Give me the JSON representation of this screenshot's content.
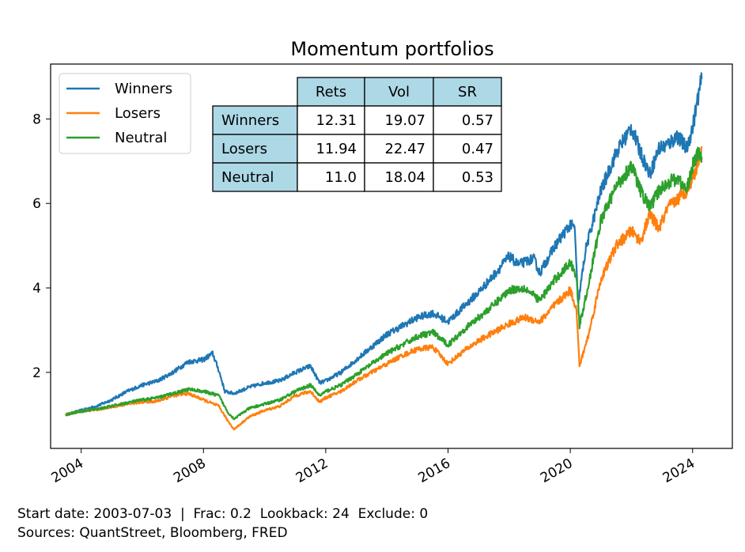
{
  "chart_data": {
    "type": "line",
    "title": "Momentum portfolios",
    "xlabel": "",
    "ylabel": "",
    "xlim": [
      2003.0,
      2025.3
    ],
    "ylim": [
      0.2,
      9.3
    ],
    "x_ticks": [
      2004,
      2008,
      2012,
      2016,
      2020,
      2024
    ],
    "x_tick_labels": [
      "2004",
      "2008",
      "2012",
      "2016",
      "2020",
      "2024"
    ],
    "y_ticks": [
      2,
      4,
      6,
      8
    ],
    "y_tick_labels": [
      "2",
      "4",
      "6",
      "8"
    ],
    "grid": false,
    "legend_position": "upper-left",
    "series": [
      {
        "name": "Winners",
        "color": "#1f77b4",
        "points": [
          [
            2003.5,
            1.0
          ],
          [
            2004.0,
            1.1
          ],
          [
            2004.5,
            1.2
          ],
          [
            2005.0,
            1.35
          ],
          [
            2005.5,
            1.55
          ],
          [
            2006.0,
            1.7
          ],
          [
            2006.5,
            1.8
          ],
          [
            2007.0,
            2.0
          ],
          [
            2007.5,
            2.25
          ],
          [
            2008.0,
            2.3
          ],
          [
            2008.3,
            2.45
          ],
          [
            2008.5,
            2.05
          ],
          [
            2008.7,
            1.55
          ],
          [
            2009.0,
            1.5
          ],
          [
            2009.5,
            1.65
          ],
          [
            2010.0,
            1.75
          ],
          [
            2010.5,
            1.8
          ],
          [
            2011.0,
            2.0
          ],
          [
            2011.5,
            2.15
          ],
          [
            2011.8,
            1.75
          ],
          [
            2012.0,
            1.8
          ],
          [
            2012.5,
            2.0
          ],
          [
            2013.0,
            2.3
          ],
          [
            2013.5,
            2.6
          ],
          [
            2014.0,
            2.9
          ],
          [
            2014.5,
            3.1
          ],
          [
            2015.0,
            3.3
          ],
          [
            2015.5,
            3.4
          ],
          [
            2016.0,
            3.2
          ],
          [
            2016.5,
            3.55
          ],
          [
            2017.0,
            3.9
          ],
          [
            2017.5,
            4.3
          ],
          [
            2018.0,
            4.75
          ],
          [
            2018.3,
            4.55
          ],
          [
            2018.8,
            4.7
          ],
          [
            2019.0,
            4.35
          ],
          [
            2019.5,
            5.0
          ],
          [
            2020.0,
            5.5
          ],
          [
            2020.15,
            5.4
          ],
          [
            2020.25,
            3.6
          ],
          [
            2020.5,
            4.9
          ],
          [
            2021.0,
            6.3
          ],
          [
            2021.5,
            7.2
          ],
          [
            2022.0,
            7.8
          ],
          [
            2022.3,
            7.2
          ],
          [
            2022.6,
            6.7
          ],
          [
            2022.9,
            7.3
          ],
          [
            2023.2,
            7.4
          ],
          [
            2023.5,
            7.6
          ],
          [
            2023.8,
            7.3
          ],
          [
            2024.0,
            7.8
          ],
          [
            2024.2,
            8.6
          ],
          [
            2024.3,
            8.95
          ]
        ]
      },
      {
        "name": "Losers",
        "color": "#ff7f0e",
        "points": [
          [
            2003.5,
            1.0
          ],
          [
            2004.0,
            1.08
          ],
          [
            2004.5,
            1.12
          ],
          [
            2005.0,
            1.18
          ],
          [
            2005.5,
            1.25
          ],
          [
            2006.0,
            1.3
          ],
          [
            2006.5,
            1.32
          ],
          [
            2007.0,
            1.45
          ],
          [
            2007.5,
            1.5
          ],
          [
            2008.0,
            1.35
          ],
          [
            2008.5,
            1.2
          ],
          [
            2008.8,
            0.85
          ],
          [
            2009.0,
            0.65
          ],
          [
            2009.5,
            0.95
          ],
          [
            2010.0,
            1.1
          ],
          [
            2010.5,
            1.2
          ],
          [
            2011.0,
            1.45
          ],
          [
            2011.5,
            1.55
          ],
          [
            2011.8,
            1.3
          ],
          [
            2012.0,
            1.4
          ],
          [
            2012.5,
            1.55
          ],
          [
            2013.0,
            1.8
          ],
          [
            2013.5,
            2.0
          ],
          [
            2014.0,
            2.2
          ],
          [
            2014.5,
            2.4
          ],
          [
            2015.0,
            2.55
          ],
          [
            2015.5,
            2.6
          ],
          [
            2016.0,
            2.2
          ],
          [
            2016.5,
            2.5
          ],
          [
            2017.0,
            2.75
          ],
          [
            2017.5,
            2.95
          ],
          [
            2018.0,
            3.15
          ],
          [
            2018.5,
            3.3
          ],
          [
            2019.0,
            3.2
          ],
          [
            2019.5,
            3.6
          ],
          [
            2020.0,
            3.95
          ],
          [
            2020.2,
            3.5
          ],
          [
            2020.3,
            2.15
          ],
          [
            2020.6,
            2.9
          ],
          [
            2021.0,
            4.2
          ],
          [
            2021.5,
            5.0
          ],
          [
            2022.0,
            5.35
          ],
          [
            2022.3,
            5.1
          ],
          [
            2022.6,
            5.75
          ],
          [
            2022.9,
            5.4
          ],
          [
            2023.2,
            5.9
          ],
          [
            2023.5,
            6.1
          ],
          [
            2023.8,
            6.3
          ],
          [
            2024.0,
            6.6
          ],
          [
            2024.2,
            7.0
          ],
          [
            2024.3,
            7.35
          ]
        ]
      },
      {
        "name": "Neutral",
        "color": "#2ca02c",
        "points": [
          [
            2003.5,
            1.0
          ],
          [
            2004.0,
            1.08
          ],
          [
            2004.5,
            1.13
          ],
          [
            2005.0,
            1.2
          ],
          [
            2005.5,
            1.28
          ],
          [
            2006.0,
            1.35
          ],
          [
            2006.5,
            1.4
          ],
          [
            2007.0,
            1.5
          ],
          [
            2007.5,
            1.6
          ],
          [
            2008.0,
            1.55
          ],
          [
            2008.5,
            1.45
          ],
          [
            2008.8,
            1.05
          ],
          [
            2009.0,
            0.9
          ],
          [
            2009.5,
            1.15
          ],
          [
            2010.0,
            1.25
          ],
          [
            2010.5,
            1.35
          ],
          [
            2011.0,
            1.55
          ],
          [
            2011.5,
            1.7
          ],
          [
            2011.8,
            1.45
          ],
          [
            2012.0,
            1.55
          ],
          [
            2012.5,
            1.7
          ],
          [
            2013.0,
            1.95
          ],
          [
            2013.5,
            2.2
          ],
          [
            2014.0,
            2.45
          ],
          [
            2014.5,
            2.65
          ],
          [
            2015.0,
            2.85
          ],
          [
            2015.5,
            2.95
          ],
          [
            2016.0,
            2.65
          ],
          [
            2016.5,
            3.0
          ],
          [
            2017.0,
            3.3
          ],
          [
            2017.5,
            3.6
          ],
          [
            2018.0,
            3.95
          ],
          [
            2018.5,
            4.0
          ],
          [
            2019.0,
            3.7
          ],
          [
            2019.5,
            4.2
          ],
          [
            2020.0,
            4.6
          ],
          [
            2020.2,
            4.3
          ],
          [
            2020.3,
            3.1
          ],
          [
            2020.6,
            4.1
          ],
          [
            2021.0,
            5.6
          ],
          [
            2021.5,
            6.4
          ],
          [
            2022.0,
            6.9
          ],
          [
            2022.3,
            6.3
          ],
          [
            2022.6,
            5.9
          ],
          [
            2022.9,
            6.3
          ],
          [
            2023.2,
            6.5
          ],
          [
            2023.5,
            6.6
          ],
          [
            2023.8,
            6.3
          ],
          [
            2024.0,
            6.9
          ],
          [
            2024.2,
            7.2
          ],
          [
            2024.3,
            7.1
          ]
        ]
      }
    ],
    "table": {
      "columns": [
        "Rets",
        "Vol",
        "SR"
      ],
      "rows": [
        {
          "label": "Winners",
          "values": [
            "12.31",
            "19.07",
            "0.57"
          ]
        },
        {
          "label": "Losers",
          "values": [
            "11.94",
            "22.47",
            "0.47"
          ]
        },
        {
          "label": "Neutral",
          "values": [
            "11.0",
            "18.04",
            "0.53"
          ]
        }
      ],
      "header_color": "#add8e6"
    }
  },
  "footer": {
    "line1": "Start date: 2003-07-03  |  Frac: 0.2  Lookback: 24  Exclude: 0",
    "line2": "Sources: QuantStreet, Bloomberg, FRED"
  }
}
